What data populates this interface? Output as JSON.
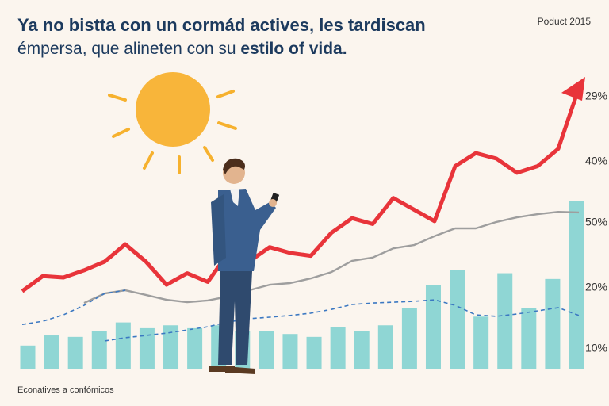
{
  "chart_data": {
    "type": "bar",
    "title": "Ya no bistta con un cormád actives, les tardiscan",
    "subtitle": [
      "émpersa, que alineten con su ",
      "estilo of vida."
    ],
    "corner_label": "Poduct 2015",
    "footnote": "Econatives a confómicos",
    "side_labels": [
      "29%",
      "40%",
      "50%",
      "20%",
      "10%"
    ],
    "ylim": [
      0,
      100
    ],
    "categories": [
      null,
      null,
      null,
      null,
      null,
      null,
      null,
      null,
      null,
      null,
      null,
      null,
      null,
      null,
      null,
      null,
      null,
      null,
      null,
      null,
      null,
      null,
      null,
      null
    ],
    "values": [
      8,
      11.5,
      11,
      13,
      16,
      14,
      15,
      14,
      15,
      13,
      13,
      12,
      11,
      14.5,
      13,
      15,
      21,
      29,
      34,
      18,
      33,
      21,
      31,
      58
    ],
    "color": "#8fd6d4",
    "line_series": [
      {
        "color": "#e8343a",
        "style": "solid",
        "values": [
          26.8,
          32,
          31.5,
          34,
          37,
          43,
          37,
          29,
          33,
          30,
          40,
          37,
          42,
          40,
          39,
          47,
          52,
          50,
          59,
          55,
          51,
          70,
          74.5,
          72.6,
          67.7,
          70,
          76,
          97
        ]
      },
      {
        "color": "#9e9e9e",
        "style": "solid",
        "values": [
          null,
          null,
          null,
          22.7,
          26,
          27.1,
          25.5,
          23.8,
          23,
          23.6,
          25,
          27.1,
          29,
          29.6,
          31.2,
          33.4,
          37.3,
          38.4,
          41.6,
          42.7,
          45.8,
          48.5,
          48.5,
          50.7,
          52.3,
          53.4,
          54.2,
          54
        ]
      },
      {
        "color": "#3b78c2",
        "style": "dashed",
        "values": [
          15.3,
          16.4,
          18.6,
          21.9,
          26,
          27.1,
          null,
          null,
          null,
          null,
          null,
          null,
          null,
          null,
          null,
          null,
          null,
          null,
          null,
          null,
          null,
          null,
          null,
          null,
          null,
          null,
          null,
          null
        ]
      },
      {
        "color": "#3b78c2",
        "style": "dashed",
        "values": [
          null,
          null,
          null,
          null,
          9.6,
          10.7,
          11.5,
          12.3,
          13.4,
          14.5,
          16.2,
          17.3,
          17.8,
          18.4,
          19.2,
          20.5,
          22.2,
          22.7,
          23,
          23.3,
          23.8,
          21.9,
          18.6,
          18.1,
          18.9,
          20,
          21.1,
          18.4
        ]
      }
    ]
  }
}
